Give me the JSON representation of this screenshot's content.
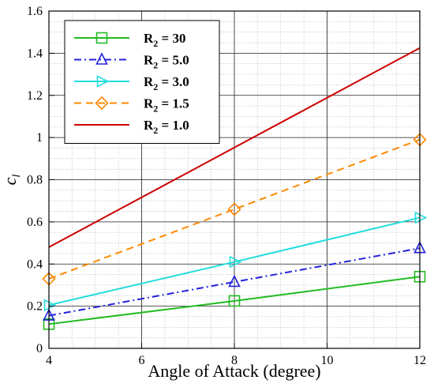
{
  "chart_data": {
    "type": "line",
    "title": "",
    "xlabel": "Angle of Attack (degree)",
    "ylabel_main": "c",
    "ylabel_sub": "l",
    "xlim": [
      4,
      12
    ],
    "ylim": [
      0,
      1.6
    ],
    "xticks": [
      4,
      6,
      8,
      10,
      12
    ],
    "xtick_labels": [
      "4",
      "6",
      "8",
      "10",
      "12"
    ],
    "yticks": [
      0,
      0.2,
      0.4,
      0.6,
      0.8,
      1,
      1.2,
      1.4,
      1.6
    ],
    "ytick_labels": [
      "0",
      "0.2",
      "0.4",
      "0.6",
      "0.8",
      "1",
      "1.2",
      "1.4",
      "1.6"
    ],
    "grid": true,
    "minor_grid": true,
    "legend_position": "top-left",
    "series": [
      {
        "name_main": "R",
        "name_sub": "2",
        "name_rest": " = 30",
        "color": "#22bb22",
        "dash": "solid",
        "marker": "square",
        "x": [
          4,
          8,
          12
        ],
        "y": [
          0.115,
          0.225,
          0.34
        ]
      },
      {
        "name_main": "R",
        "name_sub": "2",
        "name_rest": " = 5.0",
        "color": "#2222dd",
        "dash": "dashdot",
        "marker": "triangle-up",
        "x": [
          4,
          8,
          12
        ],
        "y": [
          0.155,
          0.315,
          0.475
        ]
      },
      {
        "name_main": "R",
        "name_sub": "2",
        "name_rest": " = 3.0",
        "color": "#22dddd",
        "dash": "solid",
        "marker": "triangle-right",
        "x": [
          4,
          8,
          12
        ],
        "y": [
          0.205,
          0.41,
          0.62
        ]
      },
      {
        "name_main": "R",
        "name_sub": "2",
        "name_rest": " = 1.5",
        "color": "#ff8800",
        "dash": "dash",
        "marker": "diamond",
        "x": [
          4,
          8,
          12
        ],
        "y": [
          0.33,
          0.66,
          0.99
        ]
      },
      {
        "name_main": "R",
        "name_sub": "2",
        "name_rest": " = 1.0",
        "color": "#cc0000",
        "dash": "solid",
        "marker": "none",
        "x": [
          4,
          12
        ],
        "y": [
          0.48,
          1.425
        ]
      }
    ]
  }
}
